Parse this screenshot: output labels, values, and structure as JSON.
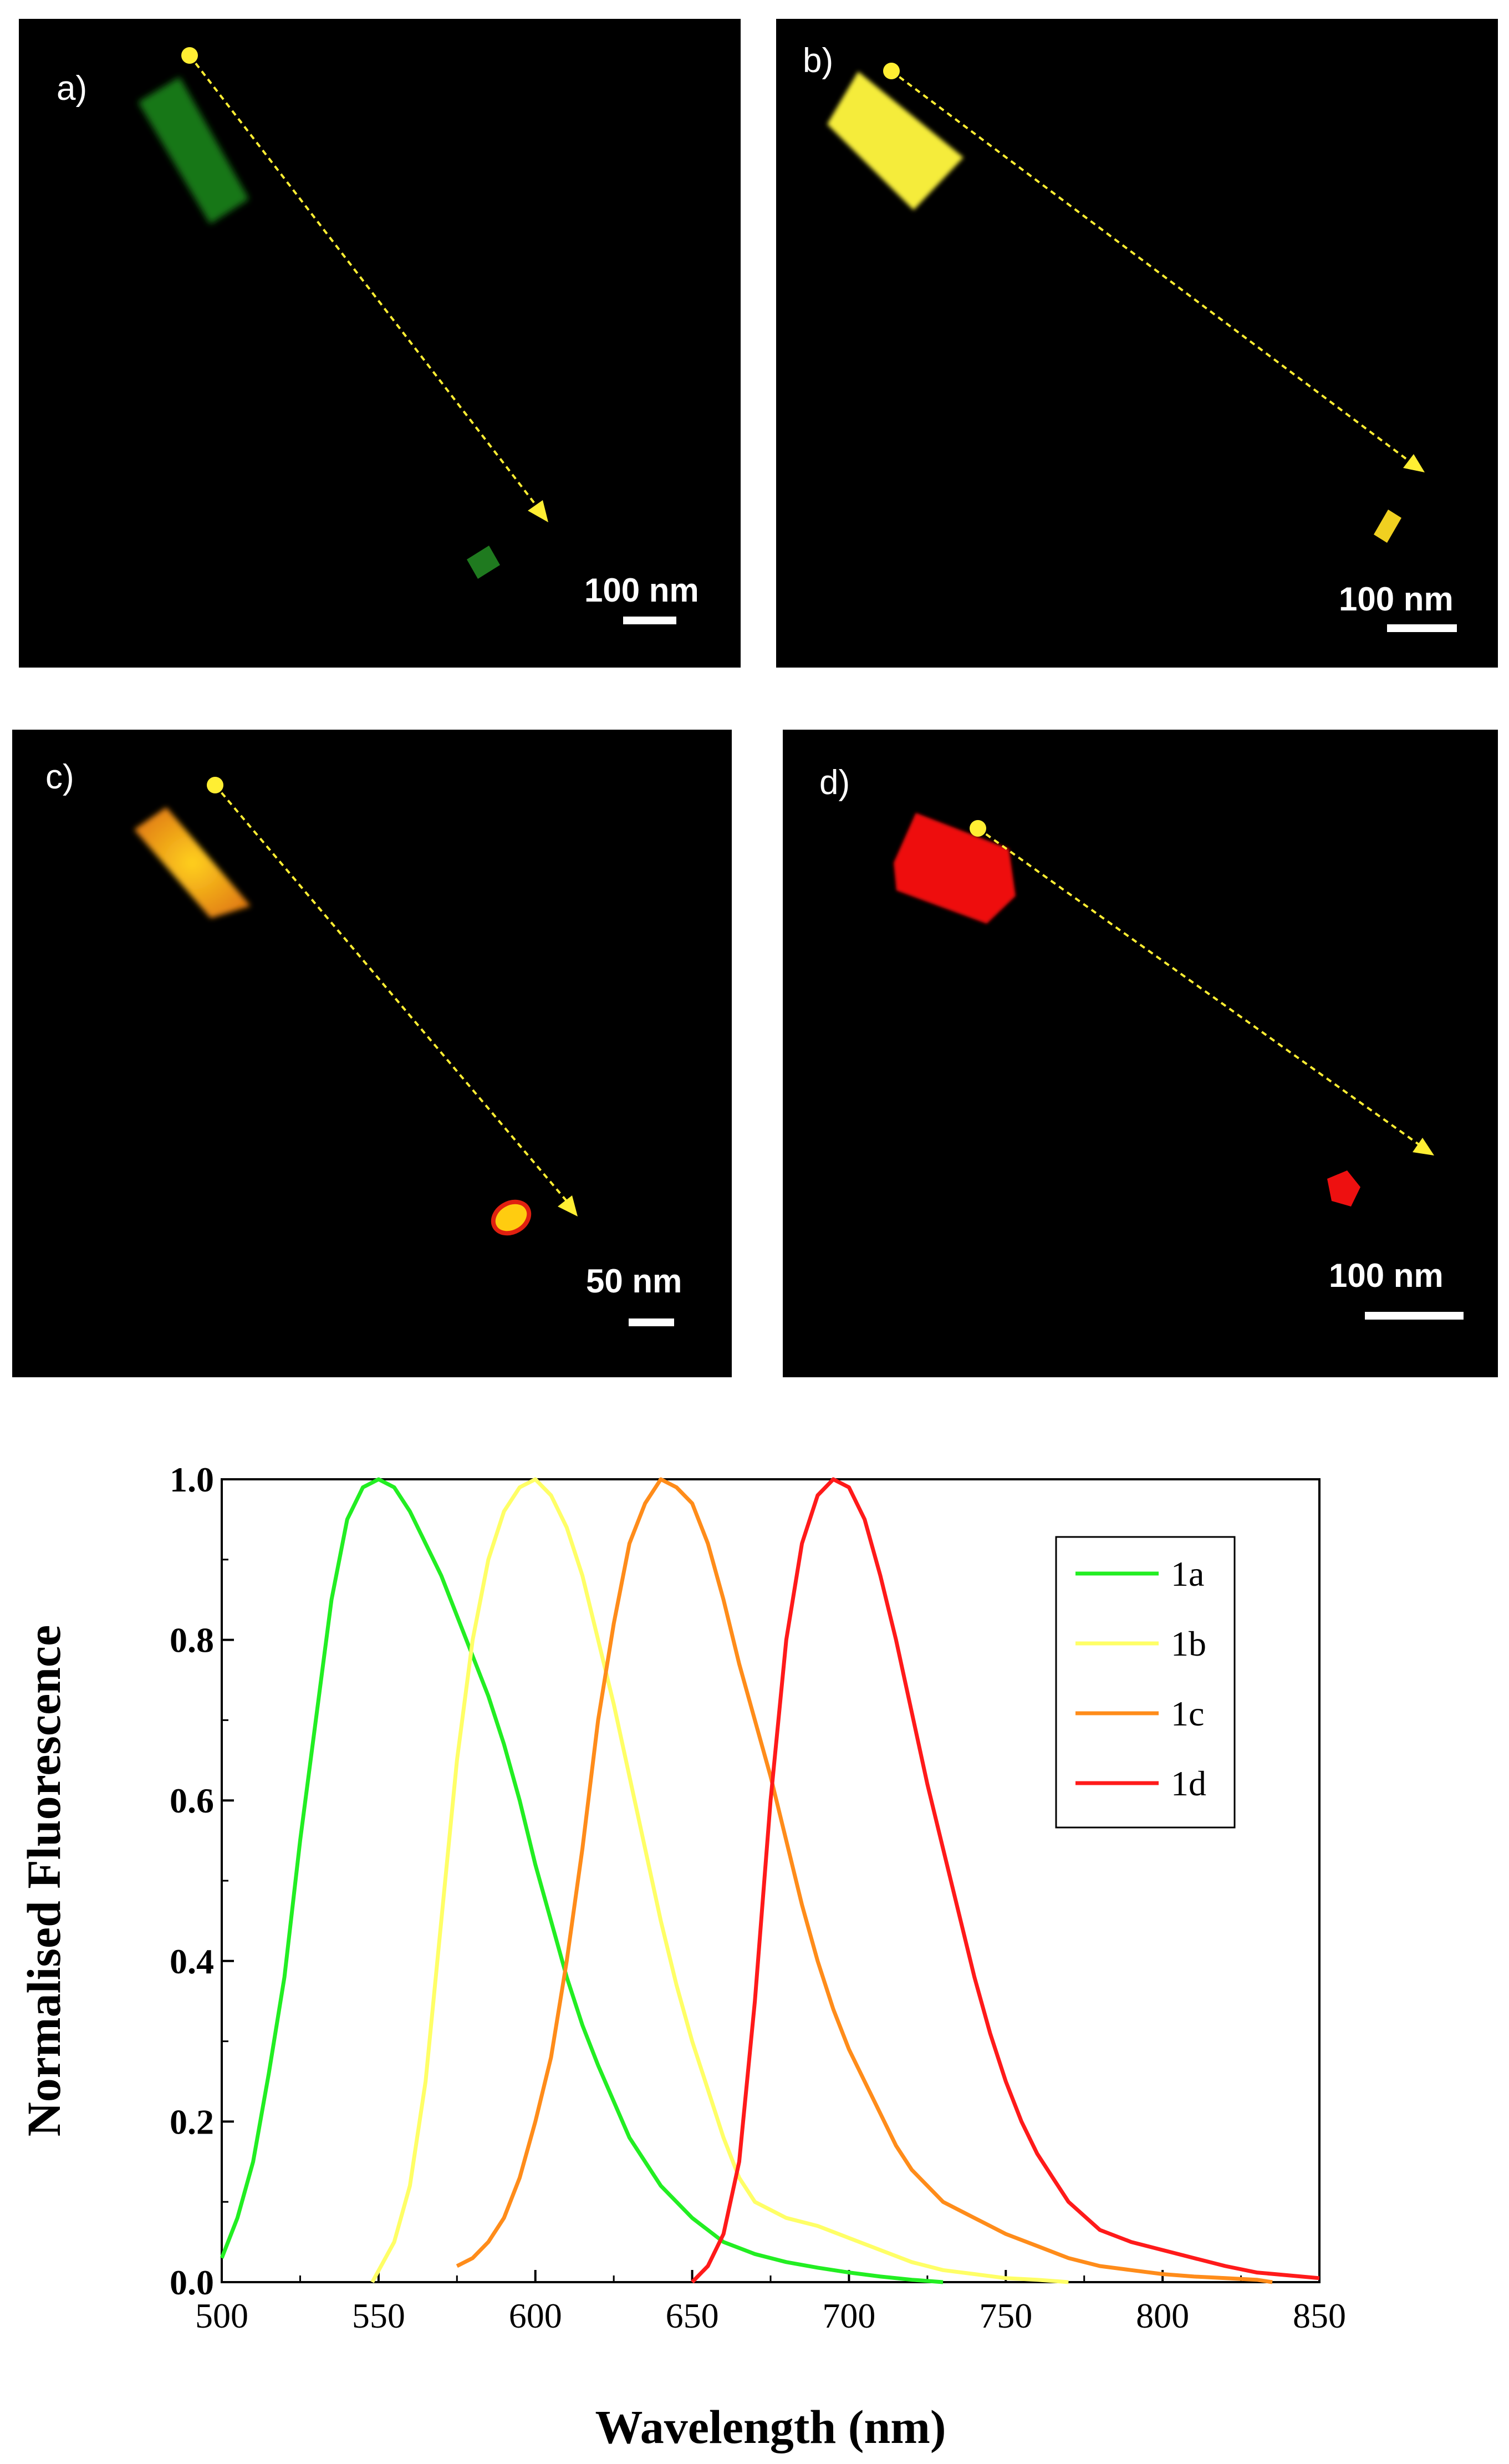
{
  "panels": [
    {
      "label": "a)",
      "scale": "100 nm",
      "color": "#2db22d"
    },
    {
      "label": "b)",
      "scale": "100 nm",
      "color": "#f2e040"
    },
    {
      "label": "c)",
      "scale": "50 nm",
      "color": "#f0a818"
    },
    {
      "label": "d)",
      "scale": "100 nm",
      "color": "#f01010"
    }
  ],
  "chart_data": {
    "type": "line",
    "xlabel": "Wavelength (nm)",
    "ylabel": "Normalised Fluorescence",
    "xlim": [
      500,
      850
    ],
    "ylim": [
      0,
      1.0
    ],
    "xticks": [
      500,
      550,
      600,
      650,
      700,
      750,
      800,
      850
    ],
    "yticks": [
      0.0,
      0.2,
      0.4,
      0.6,
      0.8,
      1.0
    ],
    "legend_position": "top-right",
    "series": [
      {
        "name": "1a",
        "color": "#22ee22",
        "x": [
          500,
          505,
          510,
          515,
          520,
          525,
          530,
          535,
          540,
          545,
          550,
          555,
          560,
          565,
          570,
          575,
          580,
          585,
          590,
          595,
          600,
          605,
          610,
          615,
          620,
          630,
          640,
          650,
          660,
          670,
          680,
          690,
          700,
          710,
          720,
          730
        ],
        "y": [
          0.03,
          0.08,
          0.15,
          0.26,
          0.38,
          0.55,
          0.7,
          0.85,
          0.95,
          0.99,
          1.0,
          0.99,
          0.96,
          0.92,
          0.88,
          0.83,
          0.78,
          0.73,
          0.67,
          0.6,
          0.52,
          0.45,
          0.38,
          0.32,
          0.27,
          0.18,
          0.12,
          0.08,
          0.05,
          0.035,
          0.025,
          0.018,
          0.012,
          0.007,
          0.003,
          0.0
        ]
      },
      {
        "name": "1b",
        "color": "#ffff66",
        "x": [
          548,
          555,
          560,
          565,
          570,
          575,
          580,
          585,
          590,
          595,
          600,
          605,
          610,
          615,
          620,
          625,
          630,
          635,
          640,
          645,
          650,
          655,
          660,
          665,
          670,
          680,
          690,
          700,
          710,
          720,
          730,
          740,
          750,
          760,
          770
        ],
        "y": [
          0.0,
          0.05,
          0.12,
          0.25,
          0.45,
          0.65,
          0.8,
          0.9,
          0.96,
          0.99,
          1.0,
          0.98,
          0.94,
          0.88,
          0.8,
          0.72,
          0.63,
          0.54,
          0.45,
          0.37,
          0.3,
          0.24,
          0.18,
          0.13,
          0.1,
          0.08,
          0.07,
          0.055,
          0.04,
          0.025,
          0.015,
          0.01,
          0.005,
          0.003,
          0.0
        ]
      },
      {
        "name": "1c",
        "color": "#ff8c1a",
        "x": [
          575,
          580,
          585,
          590,
          595,
          600,
          605,
          610,
          615,
          620,
          625,
          630,
          635,
          640,
          645,
          650,
          655,
          660,
          665,
          670,
          675,
          680,
          685,
          690,
          695,
          700,
          705,
          710,
          715,
          720,
          730,
          740,
          750,
          760,
          770,
          780,
          790,
          800,
          810,
          820,
          830,
          835
        ],
        "y": [
          0.02,
          0.03,
          0.05,
          0.08,
          0.13,
          0.2,
          0.28,
          0.4,
          0.54,
          0.7,
          0.82,
          0.92,
          0.97,
          1.0,
          0.99,
          0.97,
          0.92,
          0.85,
          0.77,
          0.7,
          0.63,
          0.55,
          0.47,
          0.4,
          0.34,
          0.29,
          0.25,
          0.21,
          0.17,
          0.14,
          0.1,
          0.08,
          0.06,
          0.045,
          0.03,
          0.02,
          0.015,
          0.01,
          0.007,
          0.005,
          0.003,
          0.0
        ]
      },
      {
        "name": "1d",
        "color": "#ff1a1a",
        "x": [
          650,
          655,
          660,
          665,
          670,
          675,
          680,
          685,
          690,
          695,
          700,
          705,
          710,
          715,
          720,
          725,
          730,
          735,
          740,
          745,
          750,
          755,
          760,
          765,
          770,
          780,
          790,
          800,
          810,
          820,
          830,
          850
        ],
        "y": [
          0.0,
          0.02,
          0.06,
          0.15,
          0.35,
          0.6,
          0.8,
          0.92,
          0.98,
          1.0,
          0.99,
          0.95,
          0.88,
          0.8,
          0.71,
          0.62,
          0.54,
          0.46,
          0.38,
          0.31,
          0.25,
          0.2,
          0.16,
          0.13,
          0.1,
          0.065,
          0.05,
          0.04,
          0.03,
          0.02,
          0.012,
          0.005
        ]
      }
    ]
  }
}
